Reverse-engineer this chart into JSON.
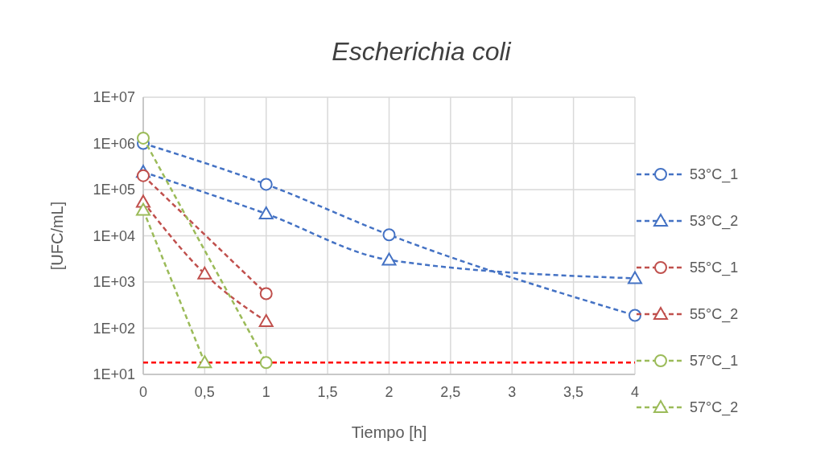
{
  "chart_data": {
    "type": "line",
    "title": "Escherichia coli",
    "xlabel": "Tiempo [h]",
    "ylabel": "[UFC/mL]",
    "log": "y",
    "grid": true,
    "legend": "right",
    "line_style": "dashed",
    "xlim": [
      0,
      4
    ],
    "xticks": [
      0,
      {
        "value": 0.5,
        "label": "0,5"
      },
      1,
      {
        "value": 1.5,
        "label": "1,5"
      },
      2,
      {
        "value": 2.5,
        "label": "2,5"
      },
      3,
      {
        "value": 3.5,
        "label": "3,5"
      },
      4
    ],
    "ylim": [
      10,
      10000000
    ],
    "yticks": [
      {
        "value": 10,
        "label": "1E+01"
      },
      {
        "value": 100,
        "label": "1E+02"
      },
      {
        "value": 1000,
        "label": "1E+03"
      },
      {
        "value": 10000,
        "label": "1E+04"
      },
      {
        "value": 100000,
        "label": "1E+05"
      },
      {
        "value": 1000000,
        "label": "1E+06"
      },
      {
        "value": 10000000,
        "label": "1E+07"
      }
    ],
    "series": [
      {
        "name": "53°C_1",
        "color": "#4472c4",
        "marker": "circle",
        "x": [
          0,
          1,
          2,
          4
        ],
        "values": [
          1000000,
          130000,
          10500,
          190
        ]
      },
      {
        "name": "53°C_2",
        "color": "#4472c4",
        "marker": "triangle",
        "x": [
          0,
          1,
          2,
          4
        ],
        "values": [
          240000,
          30000,
          3000,
          1200
        ]
      },
      {
        "name": "55°C_1",
        "color": "#c0504d",
        "marker": "circle",
        "x": [
          0,
          1
        ],
        "values": [
          200000,
          560
        ]
      },
      {
        "name": "55°C_2",
        "color": "#c0504d",
        "marker": "triangle",
        "x": [
          0,
          0.5,
          1
        ],
        "values": [
          54000,
          1500,
          140
        ]
      },
      {
        "name": "57°C_1",
        "color": "#9bbb59",
        "marker": "circle",
        "x": [
          0,
          1
        ],
        "values": [
          1300000,
          18
        ]
      },
      {
        "name": "57°C_2",
        "color": "#9bbb59",
        "marker": "triangle",
        "x": [
          0,
          0.5
        ],
        "values": [
          36000,
          18
        ]
      }
    ],
    "ref_lines": [
      {
        "axis": "y",
        "value": 18,
        "color": "#ff0000",
        "line_style": "dashed"
      }
    ]
  }
}
